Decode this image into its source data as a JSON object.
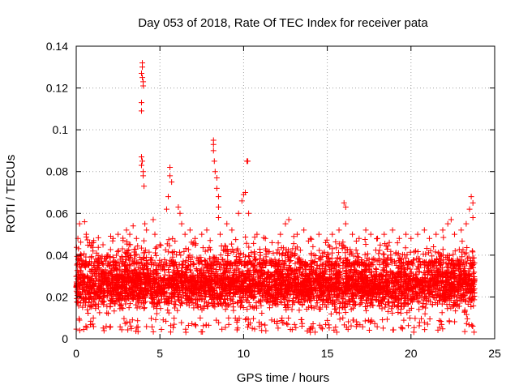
{
  "chart_data": {
    "type": "scatter",
    "title": "Day 053 of 2018, Rate Of TEC Index for receiver pata",
    "xlabel": "GPS time / hours",
    "ylabel": "ROTI / TECUs",
    "xlim": [
      0,
      25
    ],
    "ylim": [
      0,
      0.14
    ],
    "xticks": [
      0,
      5,
      10,
      15,
      20,
      25
    ],
    "xtick_labels": [
      "0",
      "5",
      "10",
      "15",
      "20",
      "25"
    ],
    "yticks": [
      0,
      0.02,
      0.04,
      0.06,
      0.08,
      0.1,
      0.12,
      0.14
    ],
    "ytick_labels": [
      "0",
      "0.02",
      "0.04",
      "0.06",
      "0.08",
      "0.1",
      "0.12",
      "0.14"
    ],
    "grid": true,
    "marker": "+",
    "series_color": "#ff0000",
    "band": {
      "description": "dense cloud of ROTI values across the day",
      "x_range": [
        0,
        23.8
      ],
      "typical_low": 0.01,
      "typical_high": 0.035
    },
    "points": [
      [
        0.1,
        0.048
      ],
      [
        0.2,
        0.055
      ],
      [
        0.3,
        0.04
      ],
      [
        0.5,
        0.056
      ],
      [
        0.6,
        0.05
      ],
      [
        0.8,
        0.046
      ],
      [
        1.0,
        0.042
      ],
      [
        1.3,
        0.036
      ],
      [
        1.6,
        0.045
      ],
      [
        1.9,
        0.04
      ],
      [
        2.2,
        0.048
      ],
      [
        2.5,
        0.05
      ],
      [
        2.8,
        0.047
      ],
      [
        3.0,
        0.052
      ],
      [
        3.2,
        0.05
      ],
      [
        3.4,
        0.054
      ],
      [
        3.6,
        0.048
      ],
      [
        3.95,
        0.132
      ],
      [
        3.95,
        0.13
      ],
      [
        3.9,
        0.127
      ],
      [
        3.95,
        0.125
      ],
      [
        4.0,
        0.123
      ],
      [
        4.0,
        0.121
      ],
      [
        3.9,
        0.113
      ],
      [
        3.9,
        0.109
      ],
      [
        3.9,
        0.087
      ],
      [
        3.95,
        0.085
      ],
      [
        3.9,
        0.083
      ],
      [
        4.0,
        0.08
      ],
      [
        4.0,
        0.078
      ],
      [
        4.05,
        0.073
      ],
      [
        4.1,
        0.055
      ],
      [
        4.2,
        0.052
      ],
      [
        4.6,
        0.057
      ],
      [
        4.7,
        0.05
      ],
      [
        5.0,
        0.045
      ],
      [
        5.4,
        0.062
      ],
      [
        5.5,
        0.068
      ],
      [
        5.6,
        0.078
      ],
      [
        5.6,
        0.082
      ],
      [
        5.7,
        0.075
      ],
      [
        6.1,
        0.063
      ],
      [
        6.2,
        0.06
      ],
      [
        6.3,
        0.055
      ],
      [
        6.5,
        0.05
      ],
      [
        6.8,
        0.052
      ],
      [
        7.1,
        0.048
      ],
      [
        7.5,
        0.05
      ],
      [
        7.8,
        0.052
      ],
      [
        8.2,
        0.095
      ],
      [
        8.2,
        0.093
      ],
      [
        8.2,
        0.09
      ],
      [
        8.25,
        0.085
      ],
      [
        8.3,
        0.08
      ],
      [
        8.4,
        0.077
      ],
      [
        8.4,
        0.072
      ],
      [
        8.5,
        0.068
      ],
      [
        8.5,
        0.063
      ],
      [
        8.5,
        0.058
      ],
      [
        8.6,
        0.05
      ],
      [
        9.0,
        0.055
      ],
      [
        9.3,
        0.052
      ],
      [
        9.7,
        0.06
      ],
      [
        9.9,
        0.066
      ],
      [
        10.0,
        0.069
      ],
      [
        10.1,
        0.07
      ],
      [
        10.2,
        0.085
      ],
      [
        10.25,
        0.085
      ],
      [
        10.3,
        0.06
      ],
      [
        10.8,
        0.05
      ],
      [
        11.3,
        0.048
      ],
      [
        11.7,
        0.046
      ],
      [
        12.2,
        0.05
      ],
      [
        12.5,
        0.055
      ],
      [
        12.7,
        0.057
      ],
      [
        13.2,
        0.05
      ],
      [
        13.6,
        0.052
      ],
      [
        14.0,
        0.048
      ],
      [
        14.5,
        0.05
      ],
      [
        14.9,
        0.046
      ],
      [
        15.3,
        0.05
      ],
      [
        15.7,
        0.052
      ],
      [
        16.0,
        0.065
      ],
      [
        16.1,
        0.063
      ],
      [
        16.1,
        0.055
      ],
      [
        16.5,
        0.05
      ],
      [
        16.9,
        0.048
      ],
      [
        17.3,
        0.052
      ],
      [
        17.6,
        0.05
      ],
      [
        18.0,
        0.048
      ],
      [
        18.4,
        0.05
      ],
      [
        18.9,
        0.052
      ],
      [
        19.3,
        0.048
      ],
      [
        19.7,
        0.05
      ],
      [
        20.0,
        0.048
      ],
      [
        20.4,
        0.05
      ],
      [
        20.8,
        0.052
      ],
      [
        21.1,
        0.048
      ],
      [
        21.5,
        0.05
      ],
      [
        21.9,
        0.052
      ],
      [
        22.2,
        0.055
      ],
      [
        22.4,
        0.057
      ],
      [
        22.6,
        0.05
      ],
      [
        23.0,
        0.052
      ],
      [
        23.3,
        0.055
      ],
      [
        23.5,
        0.062
      ],
      [
        23.6,
        0.068
      ],
      [
        23.7,
        0.065
      ],
      [
        23.7,
        0.058
      ]
    ]
  }
}
